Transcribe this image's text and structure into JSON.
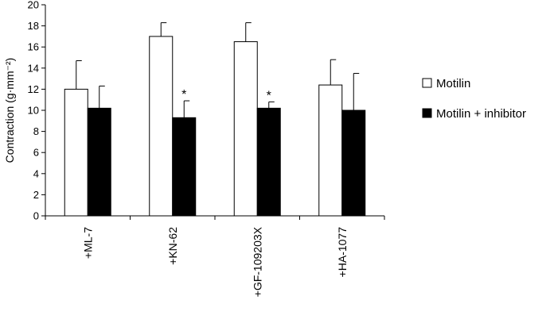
{
  "chart_data": {
    "type": "bar",
    "ylabel": "Contraction (g·mm⁻²)",
    "ylim": [
      0,
      20
    ],
    "yticks": [
      0,
      2,
      4,
      6,
      8,
      10,
      12,
      14,
      16,
      18,
      20
    ],
    "categories": [
      "+ML-7",
      "+KN-62",
      "+GF-109203X",
      "+HA-1077"
    ],
    "series": [
      {
        "name": "Motilin",
        "values": [
          12.0,
          17.0,
          16.5,
          12.4
        ],
        "errors": [
          2.7,
          1.3,
          1.8,
          2.4
        ],
        "color": "#ffffff"
      },
      {
        "name": "Motilin + inhibitor",
        "values": [
          10.2,
          9.3,
          10.2,
          10.0
        ],
        "errors": [
          2.1,
          1.6,
          0.6,
          3.5
        ],
        "color": "#000000"
      }
    ],
    "annotations": [
      {
        "category": "+KN-62",
        "series": "Motilin + inhibitor",
        "text": "*"
      },
      {
        "category": "+GF-109203X",
        "series": "Motilin + inhibitor",
        "text": "*"
      }
    ],
    "grid": false,
    "legend_position": "right"
  }
}
